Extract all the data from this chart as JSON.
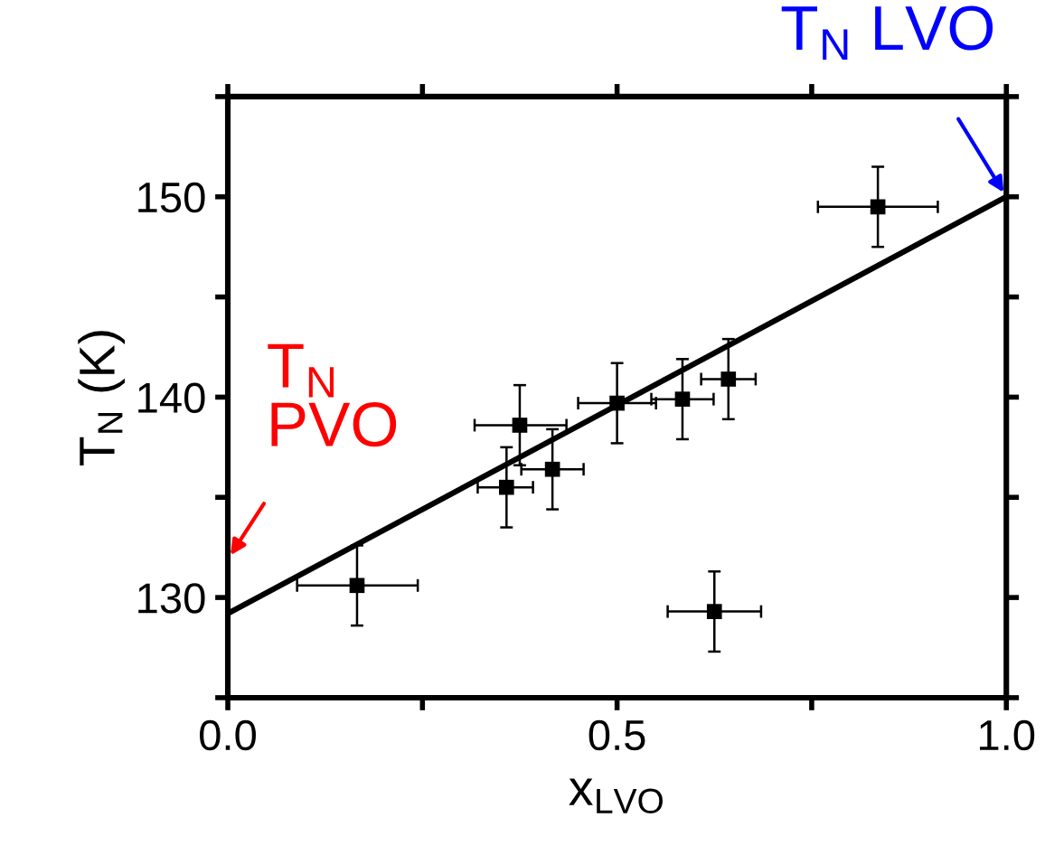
{
  "chart_data": {
    "type": "scatter",
    "xlabel": "x$_{LVO}$",
    "ylabel": "T$_{N}$ (K)",
    "xlim": [
      0,
      1
    ],
    "xticks": [
      {
        "value": 0,
        "label": "0.0"
      },
      {
        "value": 0.25,
        "label": null
      },
      0.5,
      {
        "value": 0.75,
        "label": null
      },
      {
        "value": 1,
        "label": "1.0"
      }
    ],
    "ylim": [
      125,
      155
    ],
    "yticks": [
      {
        "value": 125,
        "label": null
      },
      130,
      {
        "value": 135,
        "label": null
      },
      140,
      {
        "value": 145,
        "label": null
      },
      150,
      {
        "value": 155,
        "label": null
      }
    ],
    "grid": false,
    "marker": "square",
    "series": [
      {
        "color": "#000000",
        "x": [
          0.166,
          0.358,
          0.375,
          0.417,
          0.5,
          0.584,
          0.643,
          0.625,
          0.835
        ],
        "values": [
          130.6,
          135.5,
          138.6,
          136.4,
          139.7,
          139.9,
          140.9,
          129.3,
          149.5
        ],
        "errors": [
          2,
          2,
          2,
          2,
          2,
          2,
          2,
          2,
          2
        ],
        "xerrors": [
          [
            0.089,
            0.244
          ],
          [
            0.321,
            0.392
          ],
          [
            0.317,
            0.435
          ],
          [
            0.377,
            0.457
          ],
          [
            0.45,
            0.55
          ],
          [
            0.544,
            0.624
          ],
          [
            0.608,
            0.678
          ],
          [
            0.565,
            0.685
          ],
          [
            0.758,
            0.912
          ]
        ]
      },
      {
        "type": "line",
        "color": "#000000",
        "marker": "none",
        "x": [
          0,
          1
        ],
        "values": [
          129.2,
          150
        ]
      }
    ],
    "annotations": [
      "T$_{N}$\nPVO",
      {
        "text": "T$_{N}$ LVO",
        "x": 1,
        "y": 150
      }
    ]
  }
}
